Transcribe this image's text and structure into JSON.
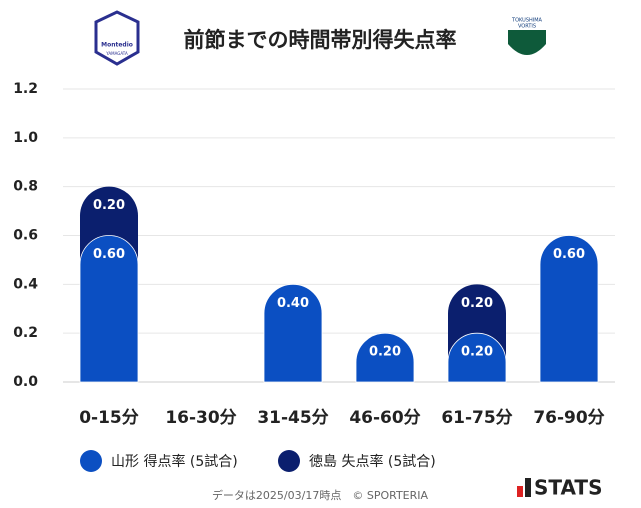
{
  "chart_data": {
    "type": "stacked-bar",
    "title": "前節までの時間帯別得失点率",
    "categories": [
      "0-15分",
      "16-30分",
      "31-45分",
      "46-60分",
      "61-75分",
      "76-90分"
    ],
    "series": [
      {
        "name": "山形 得点率 (5試合)",
        "color": "#0b4fc2",
        "values": [
          0.6,
          0,
          0.4,
          0.2,
          0.2,
          0.6
        ],
        "value_labels": [
          "0.60",
          null,
          "0.40",
          "0.20",
          "0.20",
          "0.60"
        ]
      },
      {
        "name": "徳島 失点率 (5試合)",
        "color": "#0b1f6e",
        "values": [
          0.2,
          0,
          0,
          0,
          0.2,
          0
        ],
        "value_labels": [
          "0.20",
          null,
          null,
          null,
          "0.20",
          null
        ]
      }
    ],
    "ylim": [
      0,
      1.2
    ],
    "yticks": [
      {
        "value": 0,
        "label": "0.0"
      },
      {
        "value": 0.2,
        "label": "0.2"
      },
      {
        "value": 0.4,
        "label": "0.4"
      },
      {
        "value": 0.6,
        "label": "0.6"
      },
      {
        "value": 0.8,
        "label": "0.8"
      },
      {
        "value": 1,
        "label": "1.0"
      },
      {
        "value": 1.2,
        "label": "1.2"
      }
    ],
    "grid": true,
    "footer": "データは2025/03/17時点　© SPORTERIA",
    "home_logo": [
      "Montedio",
      "YAMAGATA"
    ],
    "away_logo": [
      "TOKUSHIMA",
      "VORTIS"
    ],
    "brand": "STATS"
  }
}
